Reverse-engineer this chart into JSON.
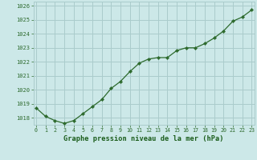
{
  "x": [
    0,
    1,
    2,
    3,
    4,
    5,
    6,
    7,
    8,
    9,
    10,
    11,
    12,
    13,
    14,
    15,
    16,
    17,
    18,
    19,
    20,
    21,
    22,
    23
  ],
  "y": [
    1018.7,
    1018.1,
    1017.8,
    1017.6,
    1017.8,
    1018.3,
    1018.8,
    1019.3,
    1020.1,
    1020.6,
    1021.3,
    1021.9,
    1022.2,
    1022.3,
    1022.3,
    1022.8,
    1023.0,
    1023.0,
    1023.3,
    1023.7,
    1024.2,
    1024.9,
    1025.2,
    1025.7
  ],
  "line_color": "#2d6a2d",
  "marker_color": "#2d6a2d",
  "bg_color": "#cce8e8",
  "grid_color": "#aacccc",
  "xlabel": "Graphe pression niveau de la mer (hPa)",
  "xlabel_color": "#1a5c1a",
  "tick_color": "#2d6a2d",
  "ylim_min": 1017.5,
  "ylim_max": 1026.3,
  "xlim_min": -0.3,
  "xlim_max": 23.3,
  "xtick_labels": [
    "0",
    "1",
    "2",
    "3",
    "4",
    "5",
    "6",
    "7",
    "8",
    "9",
    "10",
    "11",
    "12",
    "13",
    "14",
    "15",
    "16",
    "17",
    "18",
    "19",
    "20",
    "21",
    "22",
    "23"
  ],
  "ytick_labels": [
    "1018",
    "1019",
    "1020",
    "1021",
    "1022",
    "1023",
    "1024",
    "1025",
    "1026"
  ]
}
